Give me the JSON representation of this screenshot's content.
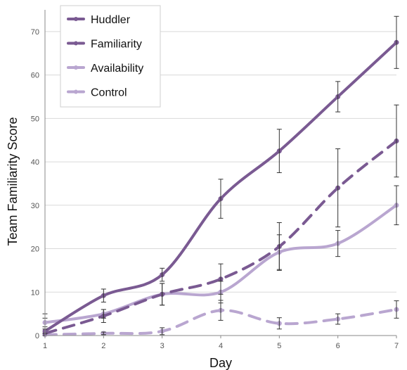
{
  "chart_data": {
    "type": "line",
    "xlabel": "Day",
    "ylabel": "Team Familiarity Score",
    "x": [
      1,
      2,
      3,
      4,
      5,
      6,
      7
    ],
    "xlim": [
      1,
      7
    ],
    "ylim": [
      0,
      75
    ],
    "yticks": [
      0,
      10,
      20,
      30,
      40,
      50,
      60,
      70
    ],
    "grid": "horizontal",
    "legend_position": "top-left",
    "series": [
      {
        "name": "Huddler",
        "color": "#7a5a92",
        "dash": "solid",
        "values": [
          1,
          9.2,
          14,
          31.5,
          42.5,
          55,
          67.5
        ],
        "errors": [
          4,
          1.5,
          1.5,
          4.5,
          5,
          3.5,
          6
        ]
      },
      {
        "name": "Familiarity",
        "color": "#7a5a92",
        "dash": "dashed",
        "values": [
          0.5,
          4.5,
          9.5,
          13,
          20.5,
          34,
          44.8
        ],
        "errors": [
          1,
          1.5,
          2.5,
          3.5,
          5.5,
          9,
          8.3
        ]
      },
      {
        "name": "Availability",
        "color": "#b9a6d0",
        "dash": "solid",
        "values": [
          3,
          5,
          9.5,
          10,
          19.2,
          21.2,
          30
        ],
        "errors": [
          1,
          1,
          2.5,
          2.5,
          4,
          3,
          4.5
        ]
      },
      {
        "name": "Control",
        "color": "#b9a6d0",
        "dash": "dashed",
        "values": [
          0.2,
          0.5,
          1,
          5.8,
          2.8,
          3.8,
          6
        ],
        "errors": [
          0.3,
          0.3,
          0.8,
          2.3,
          1.3,
          1.2,
          2
        ]
      }
    ]
  }
}
